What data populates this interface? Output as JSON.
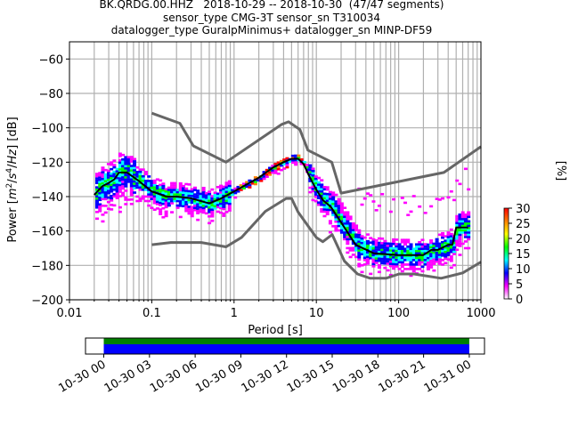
{
  "title": {
    "line1": "BK.QRDG.00.HHZ   2018-10-29 -- 2018-10-30  (47/47 segments)",
    "line2": "sensor_type CMG-3T sensor_sn T310034",
    "line3": "datalogger_type GuralpMinimus+ datalogger_sn MINP-DF59"
  },
  "chart_data": [
    {
      "type": "heatmap",
      "name": "PPSD",
      "xlabel": "Period [s]",
      "ylabel": "Power [m²/s⁴/Hz] [dB]",
      "xscale": "log",
      "xlim": [
        0.01,
        1000
      ],
      "ylim": [
        -200,
        -50
      ],
      "xticks": [
        0.01,
        0.1,
        1,
        10,
        100,
        1000
      ],
      "xtick_labels": [
        "0.01",
        "0.1",
        "1",
        "10",
        "100",
        "1000"
      ],
      "yticks": [
        -200,
        -180,
        -160,
        -140,
        -120,
        -100,
        -80,
        -60
      ],
      "ytick_labels": [
        "−200",
        "−180",
        "−160",
        "−140",
        "−120",
        "−100",
        "−80",
        "−60"
      ],
      "grid": true,
      "colorbar": {
        "label": "[%]",
        "range": [
          0,
          30
        ],
        "ticks": [
          0,
          5,
          10,
          15,
          20,
          25,
          30
        ],
        "colormap": "pqlx",
        "colors": [
          "#ffffff",
          "#ff00ff",
          "#0000ff",
          "#00ffff",
          "#00ff00",
          "#ffff00",
          "#ff8000",
          "#ff0000"
        ]
      },
      "series": [
        {
          "name": "mean",
          "color": "#000000",
          "x": [
            0.02,
            0.025,
            0.03,
            0.035,
            0.04,
            0.05,
            0.07,
            0.1,
            0.15,
            0.2,
            0.3,
            0.5,
            0.7,
            1,
            2,
            3,
            4,
            5,
            6,
            7,
            8,
            10,
            12,
            15,
            20,
            30,
            50,
            100,
            200,
            250,
            300,
            400,
            450,
            500,
            700
          ],
          "y": [
            -139,
            -134,
            -132,
            -130,
            -126,
            -126,
            -131,
            -137,
            -140,
            -140,
            -141,
            -144,
            -141,
            -137,
            -129,
            -123,
            -120,
            -118,
            -118,
            -121,
            -127,
            -136,
            -142,
            -146,
            -155,
            -168,
            -173,
            -174,
            -174,
            -171,
            -171,
            -168,
            -168,
            -158,
            -158
          ]
        },
        {
          "name": "NHNM",
          "color": "#666666",
          "x": [
            0.1,
            0.22,
            0.32,
            0.8,
            3.8,
            4.6,
            6.3,
            7.9,
            15.4,
            20,
            354.8,
            1000
          ],
          "y": [
            -91.5,
            -97.4,
            -110.5,
            -120,
            -98,
            -96.5,
            -101,
            -113,
            -120,
            -138,
            -126,
            -111
          ]
        },
        {
          "name": "NLNM",
          "color": "#666666",
          "x": [
            0.1,
            0.17,
            0.4,
            0.8,
            1.24,
            2.4,
            4.3,
            5.0,
            6.0,
            10,
            12,
            15.6,
            21.9,
            31.6,
            45,
            70,
            101,
            154,
            328,
            600,
            1000
          ],
          "y": [
            -168,
            -166.7,
            -166.7,
            -169.2,
            -163.7,
            -148.6,
            -141.1,
            -141.1,
            -149,
            -163.8,
            -166.2,
            -162.1,
            -177.5,
            -185,
            -187.5,
            -187.5,
            -185,
            -185,
            -187.5,
            -184.4,
            -178
          ]
        }
      ]
    },
    {
      "type": "bar",
      "name": "data-coverage",
      "x_tick_labels": [
        "10-30 00",
        "10-30 03",
        "10-30 06",
        "10-30 09",
        "10-30 12",
        "10-30 15",
        "10-30 18",
        "10-30 21",
        "10-31 00"
      ],
      "xlim_hours": [
        -1.2,
        25
      ],
      "bars": [
        {
          "name": "data-available",
          "color": "#008000",
          "start_hour": 0,
          "end_hour": 24
        },
        {
          "name": "used-in-ppsd",
          "color": "#0000ff",
          "start_hour": 0,
          "end_hour": 24
        }
      ]
    }
  ]
}
